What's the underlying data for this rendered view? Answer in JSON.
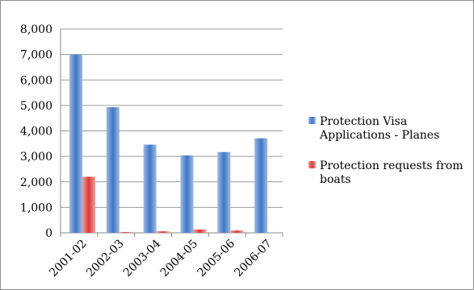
{
  "chart_data": {
    "type": "bar",
    "categories": [
      "2001-02",
      "2002-03",
      "2003-04",
      "2004-05",
      "2005-06",
      "2006-07"
    ],
    "series": [
      {
        "name": "Protection Visa Applications - Planes",
        "values": [
          7000,
          4930,
          3460,
          3040,
          3170,
          3710
        ],
        "color": "#4f81bd"
      },
      {
        "name": "Protection requests from boats",
        "values": [
          2200,
          30,
          60,
          130,
          90,
          0
        ],
        "color": "#e0504c"
      }
    ],
    "ylim": [
      0,
      8000
    ],
    "yticks": [
      "0",
      "1,000",
      "2,000",
      "3,000",
      "4,000",
      "5,000",
      "6,000",
      "7,000",
      "8,000"
    ],
    "ytick_values": [
      0,
      1000,
      2000,
      3000,
      4000,
      5000,
      6000,
      7000,
      8000
    ],
    "grid": true,
    "legend": {
      "position": "right",
      "entries": [
        {
          "lines": [
            "Protection Visa",
            "Applications - Planes"
          ]
        },
        {
          "lines": [
            "Protection requests from",
            "boats"
          ]
        }
      ]
    }
  }
}
